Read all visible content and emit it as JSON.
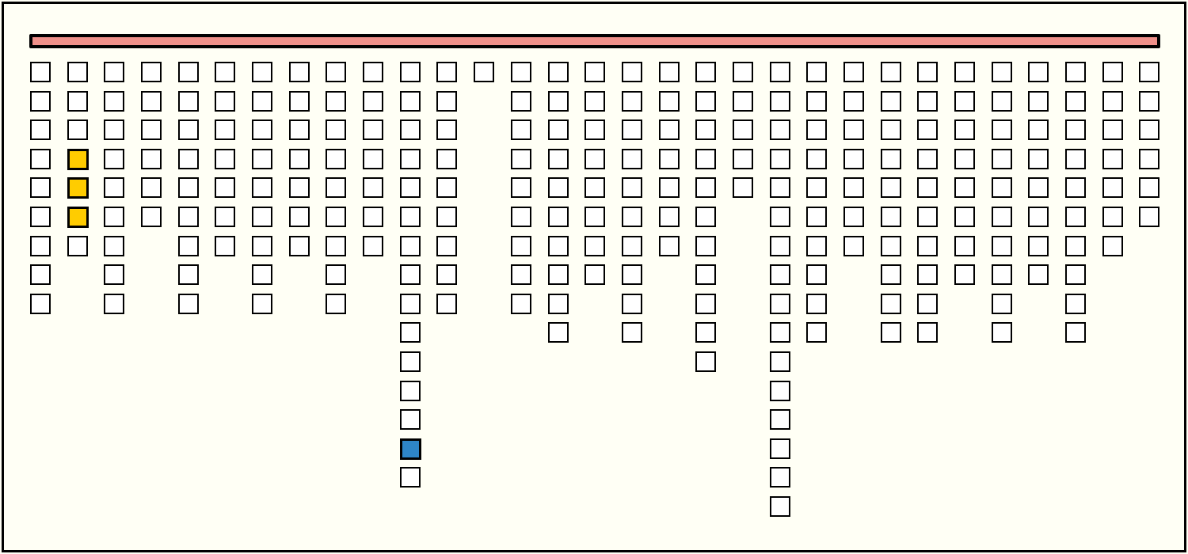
{
  "colors": {
    "background": "#fffff5",
    "bar_fill": "#ef9089",
    "cell_empty": "#ffffff",
    "cell_yellow": "#ffcc00",
    "cell_blue": "#2e86c8"
  },
  "progress_bar": {
    "fill_fraction": 1.0
  },
  "board": {
    "columns": 31,
    "column_heights": [
      9,
      7,
      9,
      6,
      9,
      7,
      9,
      7,
      9,
      7,
      15,
      9,
      1,
      9,
      10,
      8,
      10,
      7,
      11,
      5,
      16,
      10,
      7,
      10,
      10,
      8,
      10,
      8,
      10,
      7,
      6
    ],
    "highlighted_cells": [
      {
        "column": 1,
        "row": 3,
        "color": "yellow"
      },
      {
        "column": 1,
        "row": 4,
        "color": "yellow"
      },
      {
        "column": 1,
        "row": 5,
        "color": "yellow"
      },
      {
        "column": 10,
        "row": 13,
        "color": "blue"
      }
    ]
  }
}
